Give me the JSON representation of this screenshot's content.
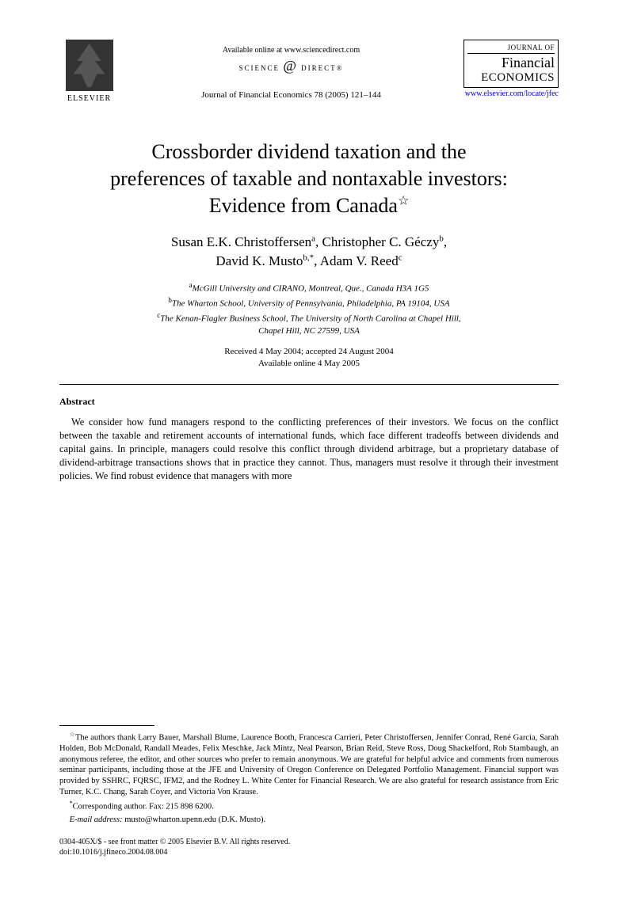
{
  "header": {
    "publisher_name": "ELSEVIER",
    "available_text": "Available online at www.sciencedirect.com",
    "science_direct_prefix": "SCIENCE",
    "science_direct_at": "@",
    "science_direct_suffix": "DIRECT®",
    "citation": "Journal of Financial Economics 78 (2005) 121–144",
    "journal_logo_top": "JOURNAL OF",
    "journal_logo_line1": "Financial",
    "journal_logo_line2": "ECONOMICS",
    "journal_url": "www.elsevier.com/locate/jfec"
  },
  "title": {
    "line1": "Crossborder dividend taxation and the",
    "line2": "preferences of taxable and nontaxable investors:",
    "line3": "Evidence from Canada",
    "star": "☆"
  },
  "authors": {
    "a1_name": "Susan E.K. Christoffersen",
    "a1_sup": "a",
    "a2_name": "Christopher C. Géczy",
    "a2_sup": "b",
    "a3_name": "David K. Musto",
    "a3_sup": "b,*",
    "a4_name": "Adam V. Reed",
    "a4_sup": "c"
  },
  "affiliations": {
    "a": "McGill University and CIRANO, Montreal, Que., Canada H3A 1G5",
    "b": "The Wharton School, University of Pennsylvania, Philadelphia, PA 19104, USA",
    "c_line1": "The Kenan-Flagler Business School, The University of North Carolina at Chapel Hill,",
    "c_line2": "Chapel Hill, NC 27599, USA"
  },
  "dates": {
    "line1": "Received 4 May 2004; accepted 24 August 2004",
    "line2": "Available online 4 May 2005"
  },
  "abstract": {
    "heading": "Abstract",
    "text": "We consider how fund managers respond to the conflicting preferences of their investors. We focus on the conflict between the taxable and retirement accounts of international funds, which face different tradeoffs between dividends and capital gains. In principle, managers could resolve this conflict through dividend arbitrage, but a proprietary database of dividend-arbitrage transactions shows that in practice they cannot. Thus, managers must resolve it through their investment policies. We find robust evidence that managers with more"
  },
  "footnotes": {
    "ack_star": "☆",
    "ack_text": "The authors thank Larry Bauer, Marshall Blume, Laurence Booth, Francesca Carrieri, Peter Christoffersen, Jennifer Conrad, René Garcia, Sarah Holden, Bob McDonald, Randall Meades, Felix Meschke, Jack Mintz, Neal Pearson, Brian Reid, Steve Ross, Doug Shackelford, Rob Stambaugh, an anonymous referee, the editor, and other sources who prefer to remain anonymous. We are grateful for helpful advice and comments from numerous seminar participants, including those at the JFE and University of Oregon Conference on Delegated Portfolio Management. Financial support was provided by SSHRC, FQRSC, IFM2, and the Rodney L. White Center for Financial Research. We are also grateful for research assistance from Eric Turner, K.C. Chang, Sarah Coyer, and Victoria Von Krause.",
    "corr_star": "*",
    "corr_text": "Corresponding author. Fax: 215 898 6200.",
    "email_label": "E-mail address:",
    "email_value": "musto@wharton.upenn.edu (D.K. Musto)."
  },
  "copyright": {
    "line1": "0304-405X/$ - see front matter © 2005 Elsevier B.V. All rights reserved.",
    "line2": "doi:10.1016/j.jfineco.2004.08.004"
  }
}
